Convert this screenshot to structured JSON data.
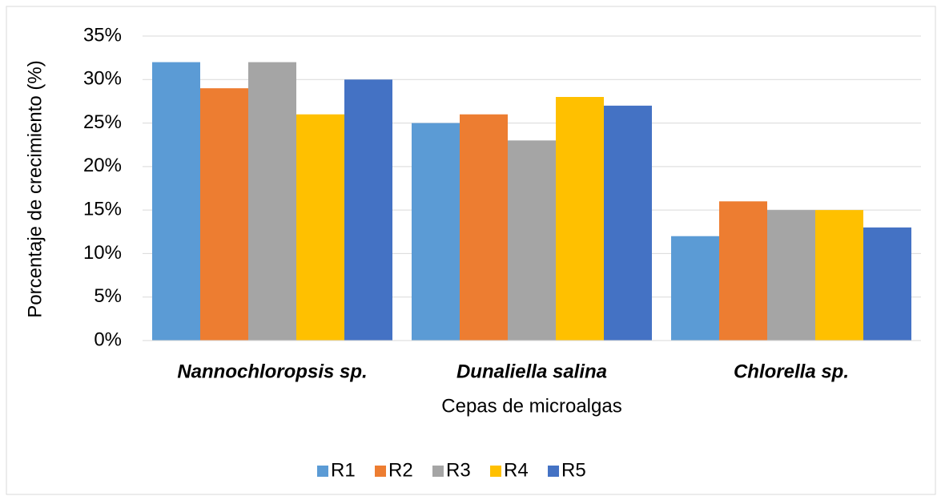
{
  "chart_data": {
    "type": "bar",
    "categories": [
      "Nannochloropsis sp.",
      "Dunaliella salina",
      "Chlorella sp."
    ],
    "series": [
      {
        "name": "R1",
        "color": "#5b9bd5",
        "values": [
          32,
          25,
          12
        ]
      },
      {
        "name": "R2",
        "color": "#ed7d31",
        "values": [
          29,
          26,
          16
        ]
      },
      {
        "name": "R3",
        "color": "#a5a5a5",
        "values": [
          32,
          23,
          15
        ]
      },
      {
        "name": "R4",
        "color": "#ffc000",
        "values": [
          26,
          28,
          15
        ]
      },
      {
        "name": "R5",
        "color": "#4472c4",
        "values": [
          30,
          27,
          13
        ]
      }
    ],
    "x_label": "Cepas de microalgas",
    "y_label": "Porcentaje de crecimiento (%)",
    "ylim": [
      0,
      35
    ],
    "yticks": [
      {
        "value": 0,
        "label": "0%"
      },
      {
        "value": 5,
        "label": "5%"
      },
      {
        "value": 10,
        "label": "10%"
      },
      {
        "value": 15,
        "label": "15%"
      },
      {
        "value": 20,
        "label": "20%"
      },
      {
        "value": 25,
        "label": "25%"
      },
      {
        "value": 30,
        "label": "30%"
      },
      {
        "value": 35,
        "label": "35%"
      }
    ],
    "grid": true,
    "legend": "bottom"
  }
}
